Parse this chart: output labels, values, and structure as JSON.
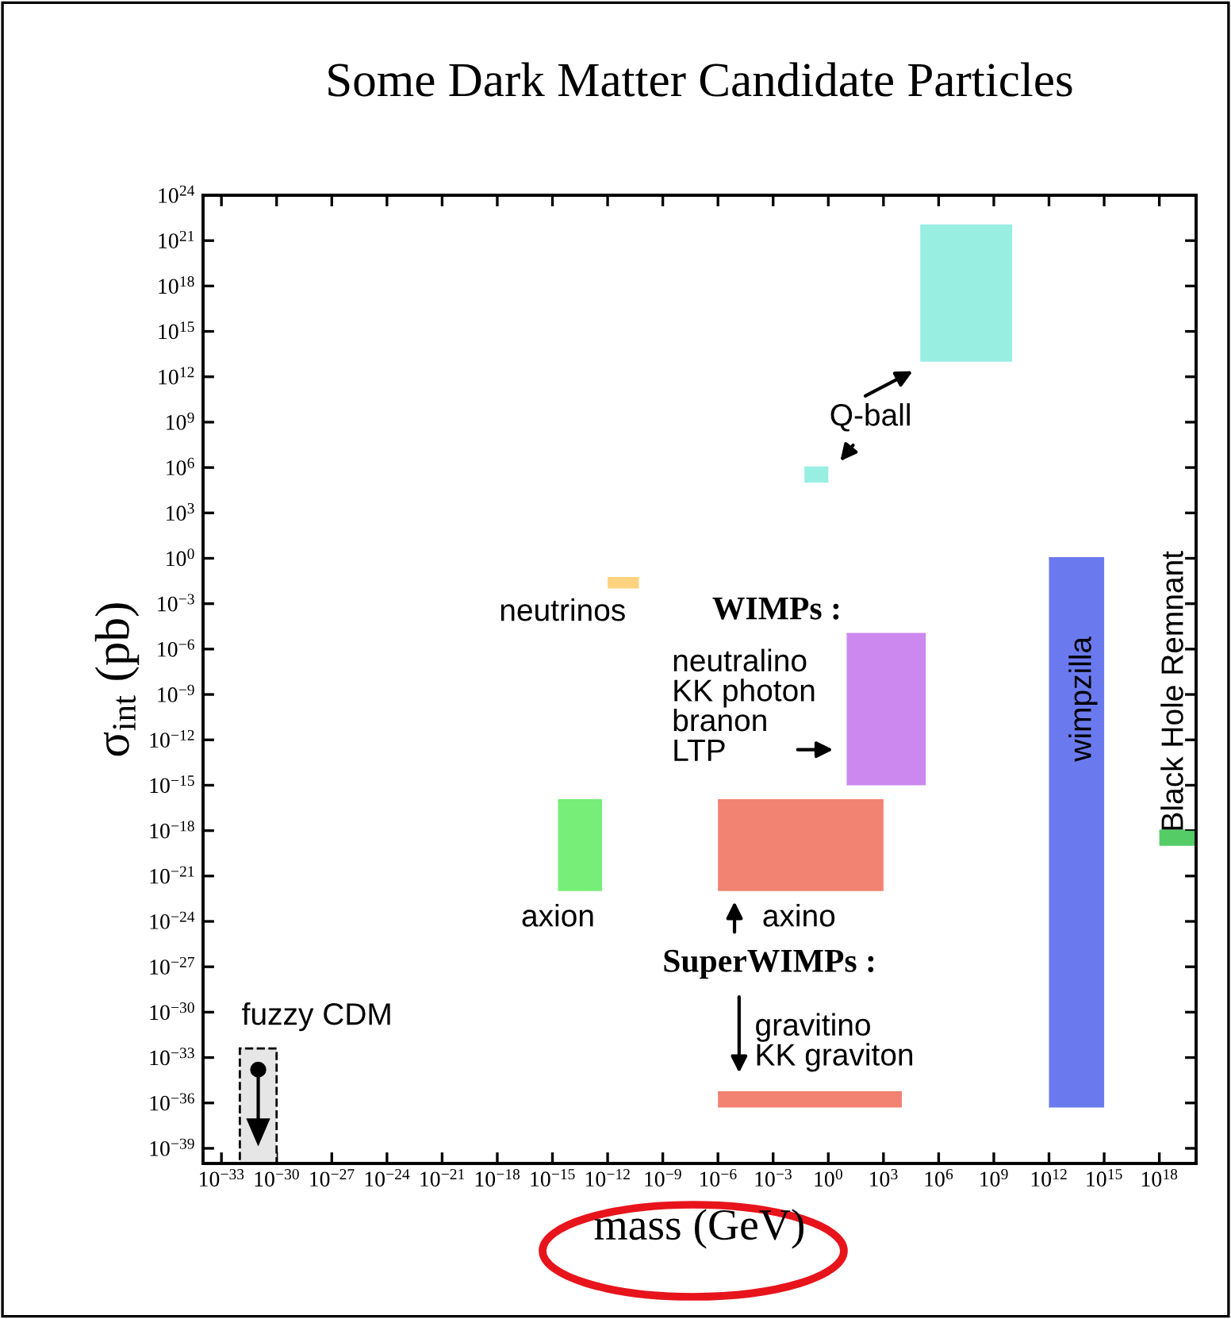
{
  "chart_data": {
    "type": "bar",
    "title": "Some Dark Matter Candidate Particles",
    "xlabel": "mass (GeV)",
    "ylabel": "σ$_{int}$ (pb)",
    "log": "xy",
    "grid": false,
    "xlim": [
      1e-34,
      1e+20
    ],
    "ylim": [
      1e-40,
      1e+24
    ],
    "xticks": [
      {
        "value": 1e-33,
        "label": "10$^{−33}$"
      },
      {
        "value": 1e-30,
        "label": "10$^{−30}$"
      },
      {
        "value": 1e-27,
        "label": "10$^{−27}$"
      },
      {
        "value": 1e-24,
        "label": "10$^{−24}$"
      },
      {
        "value": 1e-21,
        "label": "10$^{−21}$"
      },
      {
        "value": 1e-18,
        "label": "10$^{−18}$"
      },
      {
        "value": 1e-15,
        "label": "10$^{−15}$"
      },
      {
        "value": 1e-12,
        "label": "10$^{−12}$"
      },
      {
        "value": 1e-09,
        "label": "10$^{−9}$"
      },
      {
        "value": 1e-06,
        "label": "10$^{−6}$"
      },
      {
        "value": 0.001,
        "label": "10$^{−3}$"
      },
      {
        "value": 1,
        "label": "10$^{0}$"
      },
      {
        "value": 1000.0,
        "label": "10$^{3}$"
      },
      {
        "value": 1000000.0,
        "label": "10$^{6}$"
      },
      {
        "value": 1000000000.0,
        "label": "10$^{9}$"
      },
      {
        "value": 1000000000000.0,
        "label": "10$^{12}$"
      },
      {
        "value": 1000000000000000.0,
        "label": "10$^{15}$"
      },
      {
        "value": 1e+18,
        "label": "10$^{18}$"
      }
    ],
    "yticks": [
      {
        "value": 1e-39,
        "label": "10$^{−39}$"
      },
      {
        "value": 1e-36,
        "label": "10$^{−36}$"
      },
      {
        "value": 1e-33,
        "label": "10$^{−33}$"
      },
      {
        "value": 1e-30,
        "label": "10$^{−30}$"
      },
      {
        "value": 1e-27,
        "label": "10$^{−27}$"
      },
      {
        "value": 1e-24,
        "label": "10$^{−24}$"
      },
      {
        "value": 1e-21,
        "label": "10$^{−21}$"
      },
      {
        "value": 1e-18,
        "label": "10$^{−18}$"
      },
      {
        "value": 1e-15,
        "label": "10$^{−15}$"
      },
      {
        "value": 1e-12,
        "label": "10$^{−12}$"
      },
      {
        "value": 1e-09,
        "label": "10$^{−9}$"
      },
      {
        "value": 1e-06,
        "label": "10$^{−6}$"
      },
      {
        "value": 0.001,
        "label": "10$^{−3}$"
      },
      {
        "value": 1,
        "label": "10$^{0}$"
      },
      {
        "value": 1000.0,
        "label": "10$^{3}$"
      },
      {
        "value": 1000000.0,
        "label": "10$^{6}$"
      },
      {
        "value": 1000000000.0,
        "label": "10$^{9}$"
      },
      {
        "value": 1000000000000.0,
        "label": "10$^{12}$"
      },
      {
        "value": 1000000000000000.0,
        "label": "10$^{15}$"
      },
      {
        "value": 1e+18,
        "label": "10$^{18}$"
      },
      {
        "value": 1e+21,
        "label": "10$^{21}$"
      },
      {
        "value": 1e+24,
        "label": "10$^{24}$"
      }
    ],
    "series": [
      {
        "color": "#99eee2",
        "x": [
          70000000.0,
          0.22
        ],
        "base": [
          10000000000000.0,
          100000.0
        ],
        "values": [
          1e+22,
          900000.0
        ],
        "xerrors": [
          [
            100000.0,
            10000000000.0
          ],
          [
            0.05,
            1
          ]
        ]
      },
      {
        "color": "#ffd27f",
        "x": [
          7e-12
        ],
        "base": [
          0.01
        ],
        "values": [
          0.04
        ],
        "xerrors": [
          [
            1e-12,
            5e-11
          ]
        ]
      },
      {
        "color": "#cc88ee",
        "x": [
          1400
        ],
        "base": [
          1e-15
        ],
        "values": [
          1e-05
        ],
        "xerrors": [
          [
            10,
            200000.0
          ]
        ]
      },
      {
        "color": "#f28272",
        "x": [
          0.03
        ],
        "base": [
          1e-22
        ],
        "values": [
          1e-16
        ],
        "xerrors": [
          [
            1e-06,
            1000.0
          ]
        ]
      },
      {
        "color": "#f28272",
        "x": [
          0.1
        ],
        "base": [
          5e-37
        ],
        "values": [
          4.5e-36
        ],
        "xerrors": [
          [
            1e-06,
            10000.0
          ]
        ]
      },
      {
        "color": "#6a7aee",
        "x": [
          30000000000000.0
        ],
        "base": [
          5e-37
        ],
        "values": [
          1
        ],
        "xerrors": [
          [
            1000000000000.0,
            1000000000000000.0
          ]
        ]
      },
      {
        "color": "#55cc66",
        "x": [
          1e+19
        ],
        "base": [
          1e-19
        ],
        "values": [
          9e-19
        ],
        "xerrors": [
          [
            1e+18,
            1e+20
          ]
        ]
      },
      {
        "color": "#77ee77",
        "x": [
          3e-14
        ],
        "base": [
          1e-22
        ],
        "values": [
          1e-16
        ],
        "xerrors": [
          [
            2e-15,
            5e-13
          ]
        ]
      },
      {
        "color": "#e6e6e6",
        "line_style": "dashed",
        "x": [
          1e-31
        ],
        "base": [
          1e-40
        ],
        "values": [
          4e-33
        ],
        "xerrors": [
          [
            1e-32,
            1e-30
          ]
        ]
      }
    ],
    "annotations": [
      "Q-ball",
      "neutrinos",
      "WIMPs :",
      "neutralino\nKK photon\nbranon\nLTP",
      "axion",
      "axino",
      "SuperWIMPs :",
      "gravitino\nKK graviton",
      "fuzzy CDM",
      "wimpzilla",
      "Black Hole Remnant"
    ]
  }
}
